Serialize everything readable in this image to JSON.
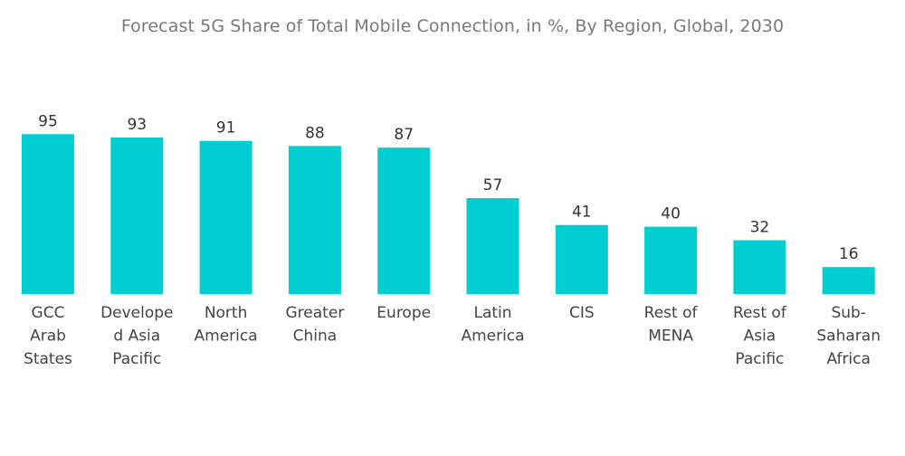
{
  "chart_data": {
    "type": "bar",
    "title": "Forecast 5G Share of Total Mobile Connection, in %, By Region, Global, 2030",
    "xlabel": "",
    "ylabel": "",
    "ylim": [
      0,
      100
    ],
    "grid": false,
    "legend": "none",
    "bar_color": "#00CED1",
    "categories": [
      "GCC Arab States",
      "Developed Asia Pacific",
      "North America",
      "Greater China",
      "Europe",
      "Latin America",
      "CIS",
      "Rest of MENA",
      "Rest of Asia Pacific",
      "Sub-Saharan Africa"
    ],
    "category_label_lines": [
      [
        "GCC",
        "Arab",
        "States"
      ],
      [
        "Develope",
        "d Asia",
        "Pacific"
      ],
      [
        "North",
        "America"
      ],
      [
        "Greater",
        "China"
      ],
      [
        "Europe"
      ],
      [
        "Latin",
        "America"
      ],
      [
        "CIS"
      ],
      [
        "Rest of",
        "MENA"
      ],
      [
        "Rest of",
        "Asia",
        "Pacific"
      ],
      [
        "Sub-",
        "Saharan",
        "Africa"
      ]
    ],
    "values": [
      95,
      93,
      91,
      88,
      87,
      57,
      41,
      40,
      32,
      16
    ]
  }
}
